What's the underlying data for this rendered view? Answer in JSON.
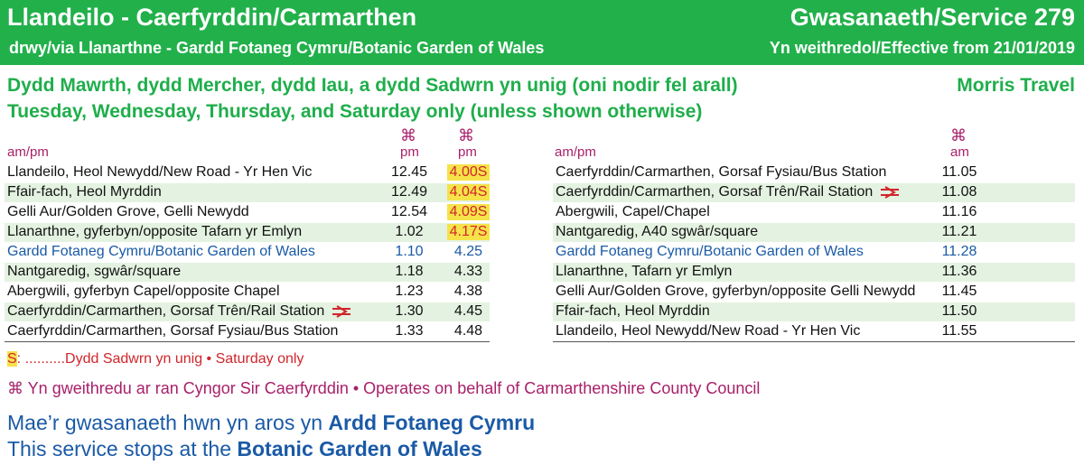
{
  "header": {
    "route": "Llandeilo - Caerfyrddin/Carmarthen",
    "via": "drwy/via Llanarthne - Gardd Fotaneg Cymru/Botanic Garden of Wales",
    "service": "Gwasanaeth/Service 279",
    "effective": "Yn weithredol/Effective from 21/01/2019"
  },
  "days_welsh": "Dydd Mawrth, dydd Mercher, dydd Iau, a dydd Sadwrn yn unig (oni nodir fel arall)",
  "days_english": "Tuesday, Wednesday, Thursday, and Saturday only (unless shown otherwise)",
  "operator": "Morris Travel",
  "left_table": {
    "ampm_label": "am/pm",
    "symbol": "⌘",
    "col_headers": [
      "pm",
      "pm"
    ],
    "rows": [
      {
        "stop": "Llandeilo, Heol Newydd/New Road - Yr Hen Vic",
        "t1": "12.45",
        "t2": "4.00S"
      },
      {
        "stop": "Ffair-fach, Heol Myrddin",
        "t1": "12.49",
        "t2": "4.04S"
      },
      {
        "stop": "Gelli Aur/Golden Grove, Gelli Newydd",
        "t1": "12.54",
        "t2": "4.09S"
      },
      {
        "stop": "Llanarthne, gyferbyn/opposite Tafarn yr Emlyn",
        "t1": "1.02",
        "t2": "4.17S"
      },
      {
        "stop": "Gardd Fotaneg Cymru/Botanic Garden of Wales",
        "t1": "1.10",
        "t2": "4.25"
      },
      {
        "stop": "Nantgaredig, sgwâr/square",
        "t1": "1.18",
        "t2": "4.33"
      },
      {
        "stop": "Abergwili, gyferbyn Capel/opposite Chapel",
        "t1": "1.23",
        "t2": "4.38"
      },
      {
        "stop": "Caerfyrddin/Carmarthen, Gorsaf Trên/Rail Station",
        "t1": "1.30",
        "t2": "4.45"
      },
      {
        "stop": "Caerfyrddin/Carmarthen, Gorsaf Fysiau/Bus Station",
        "t1": "1.33",
        "t2": "4.48"
      }
    ]
  },
  "right_table": {
    "ampm_label": "am/pm",
    "symbol": "⌘",
    "col_header": "am",
    "rows": [
      {
        "stop": "Caerfyrddin/Carmarthen, Gorsaf Fysiau/Bus Station",
        "t": "11.05"
      },
      {
        "stop": "Caerfyrddin/Carmarthen, Gorsaf Trên/Rail Station",
        "t": "11.08"
      },
      {
        "stop": "Abergwili, Capel/Chapel",
        "t": "11.16"
      },
      {
        "stop": "Nantgaredig, A40 sgwâr/square",
        "t": "11.21"
      },
      {
        "stop": "Gardd Fotaneg Cymru/Botanic Garden of Wales",
        "t": "11.28"
      },
      {
        "stop": "Llanarthne, Tafarn yr Emlyn",
        "t": "11.36"
      },
      {
        "stop": "Gelli Aur/Golden Grove, gyferbyn/opposite Gelli Newydd",
        "t": "11.45"
      },
      {
        "stop": "Ffair-fach, Heol Myrddin",
        "t": "11.50"
      },
      {
        "stop": "Llandeilo, Heol Newydd/New Road - Yr Hen Vic",
        "t": "11.55"
      }
    ]
  },
  "notes": {
    "s_key": "S",
    "s_text": ": ..........Dydd Sadwrn yn unig • Saturday only",
    "operated": "⌘ Yn gweithredu ar ran Cyngor Sir Caerfyrddin • Operates on behalf of Carmarthenshire County Council"
  },
  "stops_welsh_pre": "Mae’r gwasanaeth hwn yn aros yn ",
  "stops_welsh_bold": "Ardd Fotaneg Cymru",
  "stops_english_pre": "This service stops at the ",
  "stops_english_bold": "Botanic Garden of Wales",
  "colors": {
    "header_green": "#22b04b",
    "highlight": "#f6e24a",
    "botanic_blue": "#1a5aa6",
    "symbol_purple": "#a8206a"
  }
}
